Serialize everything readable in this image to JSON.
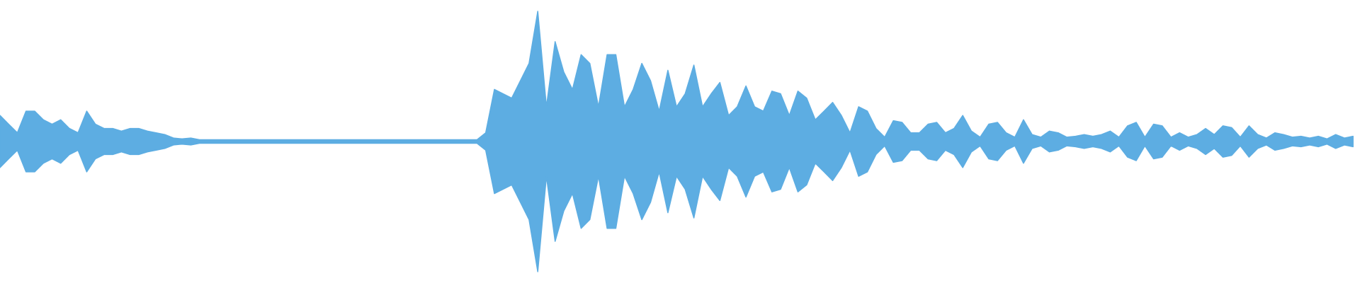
{
  "chart_data": {
    "type": "waveform",
    "color": "#5dade2",
    "xlim": [
      0,
      1568
    ],
    "ylim": [
      -163,
      163
    ],
    "x": [
      0,
      10,
      20,
      30,
      40,
      50,
      60,
      70,
      80,
      90,
      100,
      110,
      120,
      130,
      140,
      150,
      160,
      170,
      180,
      190,
      200,
      210,
      220,
      230,
      240,
      250,
      260,
      270,
      280,
      290,
      300,
      310,
      320,
      330,
      340,
      350,
      360,
      370,
      380,
      390,
      400,
      410,
      420,
      430,
      440,
      450,
      460,
      470,
      480,
      490,
      500,
      510,
      520,
      530,
      540,
      550,
      560,
      570,
      580,
      590,
      600,
      610,
      620,
      630,
      640,
      650,
      660,
      670,
      680,
      690,
      700,
      710,
      720,
      730,
      740,
      750,
      760,
      770,
      780,
      790,
      800,
      810,
      820,
      830,
      840,
      850,
      860,
      870,
      880,
      890,
      900,
      910,
      920,
      930,
      940,
      950,
      960,
      970,
      980,
      990,
      1000,
      1010,
      1020,
      1030,
      1040,
      1050,
      1060,
      1070,
      1080,
      1090,
      1100,
      1110,
      1120,
      1130,
      1140,
      1150,
      1160,
      1170,
      1180,
      1190,
      1200,
      1210,
      1220,
      1230,
      1240,
      1250,
      1260,
      1270,
      1280,
      1290,
      1300,
      1310,
      1320,
      1330,
      1340,
      1350,
      1360,
      1370,
      1380,
      1390,
      1400,
      1410,
      1420,
      1430,
      1440,
      1450,
      1460,
      1470,
      1480,
      1490,
      1500,
      1510,
      1520,
      1530,
      1540,
      1550,
      1560
    ],
    "values": [
      30,
      20,
      10,
      35,
      35,
      25,
      20,
      25,
      15,
      10,
      35,
      20,
      15,
      15,
      12,
      15,
      15,
      12,
      10,
      8,
      4,
      3,
      4,
      2,
      2,
      2,
      2,
      2,
      2,
      2,
      2,
      2,
      2,
      2,
      2,
      2,
      2,
      2,
      2,
      2,
      2,
      2,
      2,
      2,
      2,
      2,
      2,
      2,
      2,
      2,
      2,
      2,
      2,
      2,
      2,
      2,
      10,
      60,
      55,
      50,
      70,
      90,
      150,
      40,
      115,
      80,
      60,
      100,
      90,
      40,
      100,
      100,
      40,
      60,
      90,
      70,
      35,
      82,
      40,
      55,
      88,
      40,
      55,
      68,
      30,
      40,
      64,
      40,
      35,
      58,
      55,
      30,
      58,
      50,
      25,
      35,
      45,
      30,
      10,
      40,
      35,
      15,
      5,
      24,
      22,
      10,
      10,
      20,
      22,
      10,
      15,
      30,
      12,
      5,
      20,
      22,
      10,
      5,
      25,
      8,
      5,
      12,
      10,
      5,
      6,
      8,
      6,
      8,
      12,
      5,
      18,
      22,
      5,
      20,
      18,
      5,
      10,
      5,
      8,
      15,
      8,
      18,
      16,
      5,
      18,
      8,
      4,
      10,
      8,
      5,
      6,
      4,
      6,
      3,
      8,
      4,
      6
    ]
  }
}
